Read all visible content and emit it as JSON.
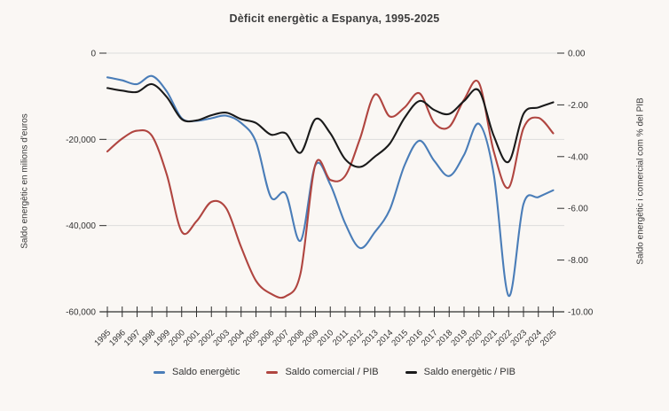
{
  "chart_data": {
    "type": "line",
    "title": "Dèficit energètic a Espanya, 1995-2025",
    "x": [
      1995,
      1996,
      1997,
      1998,
      1999,
      2000,
      2001,
      2002,
      2003,
      2004,
      2005,
      2006,
      2007,
      2008,
      2009,
      2010,
      2011,
      2012,
      2013,
      2014,
      2015,
      2016,
      2017,
      2018,
      2019,
      2020,
      2021,
      2022,
      2023,
      2024,
      2025
    ],
    "series": [
      {
        "name": "Saldo energètic",
        "axis": "left",
        "color": "#4a7db8",
        "values": [
          -5600,
          -6300,
          -7200,
          -5300,
          -8900,
          -15100,
          -15700,
          -15100,
          -14500,
          -16200,
          -20600,
          -33400,
          -32600,
          -43500,
          -26000,
          -30500,
          -39500,
          -45200,
          -41500,
          -36300,
          -26000,
          -20300,
          -25000,
          -28500,
          -23600,
          -16400,
          -28100,
          -56300,
          -35000,
          -33400,
          -31800
        ]
      },
      {
        "name": "Saldo comercial / PIB",
        "axis": "right",
        "color": "#b04540",
        "values": [
          -3.8,
          -3.3,
          -3.0,
          -3.2,
          -4.7,
          -6.9,
          -6.5,
          -5.75,
          -6.0,
          -7.5,
          -8.8,
          -9.3,
          -9.4,
          -8.5,
          -4.3,
          -4.9,
          -4.75,
          -3.3,
          -1.6,
          -2.45,
          -2.1,
          -1.55,
          -2.7,
          -2.85,
          -1.8,
          -1.15,
          -3.8,
          -5.2,
          -2.9,
          -2.5,
          -3.1
        ]
      },
      {
        "name": "Saldo energètic / PIB",
        "axis": "right",
        "color": "#1a1a1a",
        "values": [
          -1.35,
          -1.45,
          -1.5,
          -1.2,
          -1.7,
          -2.55,
          -2.6,
          -2.4,
          -2.3,
          -2.55,
          -2.7,
          -3.15,
          -3.1,
          -3.85,
          -2.55,
          -3.1,
          -4.1,
          -4.4,
          -4.0,
          -3.5,
          -2.5,
          -1.85,
          -2.2,
          -2.35,
          -1.85,
          -1.45,
          -3.2,
          -4.2,
          -2.35,
          -2.1,
          -1.9
        ]
      }
    ],
    "axes": {
      "left": {
        "label": "Saldo energètic en milions d'euros",
        "ticks": [
          0,
          -20000,
          -40000,
          -60000
        ],
        "tick_labels": [
          "0",
          "-20,000",
          "-40,000",
          "-60,000"
        ],
        "range": [
          0,
          -60000
        ]
      },
      "right": {
        "label": "Saldo energètic i comercial com % del PIB",
        "ticks": [
          0,
          -2,
          -4,
          -6,
          -8,
          -10
        ],
        "tick_labels": [
          "0.00",
          "-2.00",
          "-4.00",
          "-6.00",
          "-8.00",
          "-10.00"
        ],
        "range": [
          0,
          -10
        ]
      }
    },
    "x_tick_labels": [
      "1995",
      "1996",
      "1997",
      "1998",
      "1999",
      "2000",
      "2001",
      "2002",
      "2003",
      "2004",
      "2005",
      "2006",
      "2007",
      "2008",
      "2009",
      "2010",
      "2011",
      "2012",
      "2013",
      "2014",
      "2015",
      "2016",
      "2017",
      "2018",
      "2019",
      "2020",
      "2021",
      "2022",
      "2023",
      "2024",
      "2025"
    ],
    "grid": true,
    "legend_position": "bottom"
  },
  "style": {
    "axis_color": "#2f2f2f",
    "grid_color": "#dcdcdc",
    "tick_label_color": "#333333"
  }
}
